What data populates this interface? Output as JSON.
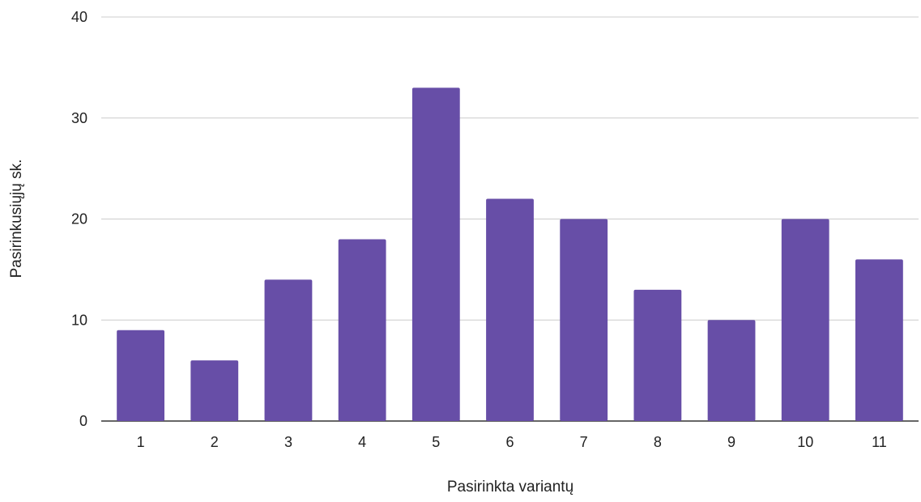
{
  "chart_data": {
    "type": "bar",
    "title": "",
    "xlabel": "Pasirinkta variantų",
    "ylabel": "Pasirinkusiųjų sk.",
    "categories": [
      "1",
      "2",
      "3",
      "4",
      "5",
      "6",
      "7",
      "8",
      "9",
      "10",
      "11"
    ],
    "series": [
      {
        "values": [
          9,
          6,
          14,
          18,
          33,
          22,
          20,
          13,
          10,
          20,
          16
        ],
        "color": "#674ea7"
      }
    ],
    "ylim": [
      0,
      40
    ],
    "yticks": [
      "0",
      "10",
      "20",
      "30",
      "40"
    ],
    "grid": true,
    "legend": "none"
  },
  "colors": {
    "bar": "#674ea7",
    "gridline": "#cccccc",
    "baseline": "#333333"
  }
}
